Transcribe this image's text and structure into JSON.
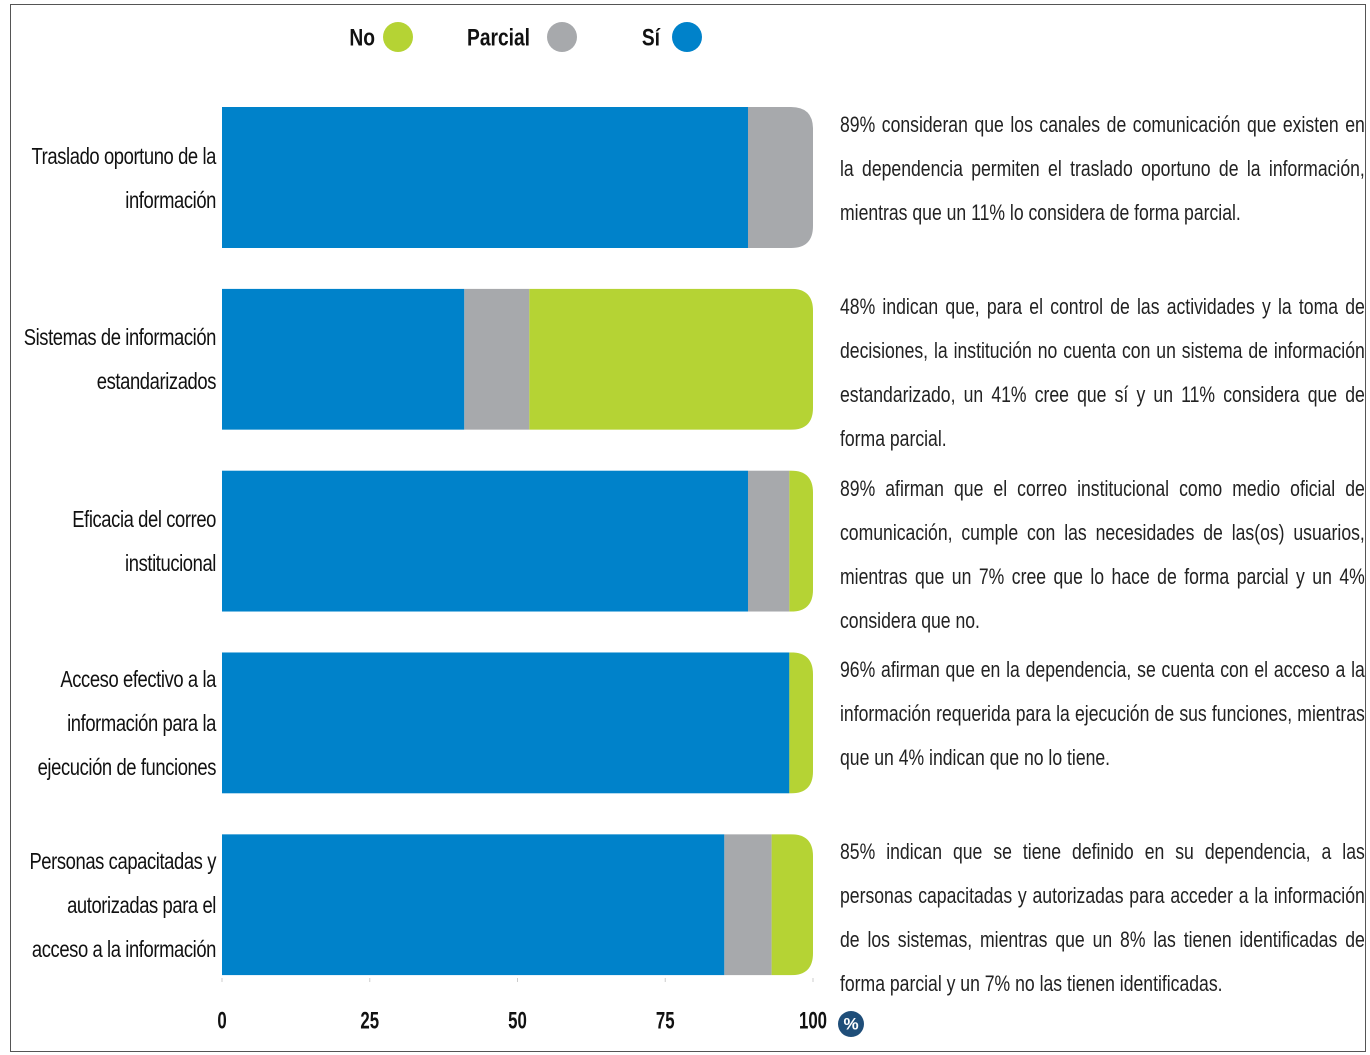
{
  "chart_data": {
    "type": "stacked_barh",
    "categories": [
      "Traslado oportuno de la información",
      "Sistemas de información estandarizados",
      "Eficacia del correo institucional",
      "Acceso efectivo a la información para la ejecución de funciones",
      "Personas capacitadas y autorizadas para el acceso a la información"
    ],
    "series": [
      {
        "name": "No",
        "color": "#b5d334",
        "values": [
          0,
          48,
          4,
          4,
          7
        ]
      },
      {
        "name": "Parcial",
        "color": "#a7a9ac",
        "values": [
          11,
          11,
          7,
          0,
          8
        ]
      },
      {
        "name": "Sí",
        "color": "#0082ca",
        "values": [
          89,
          41,
          89,
          96,
          85
        ]
      }
    ],
    "xlim": [
      0,
      100
    ],
    "xticks": [
      0,
      25,
      50,
      75,
      100
    ],
    "xlabel": "%",
    "annotations": [
      "89% consideran que los canales de comunicación que existen en la dependencia permiten el traslado oportuno de la información, mientras que un 11% lo considera de forma parcial.",
      "48% indican que, para el control de las actividades y la toma de decisiones, la institución no cuenta con un sistema de información estandarizado, un 41% cree que sí y un 11% considera que de forma parcial.",
      "89% afirman que el correo institucional como medio oficial de comunicación, cumple con las necesidades de las(os) usuarios, mientras que un 7% cree que lo hace de forma parcial y un 4% considera que no.",
      "96% afirman que en la dependencia, se cuenta con el acceso a la información requerida para la ejecución de sus funciones, mientras que un 4% indican que no lo tiene.",
      "85% indican que se tiene definido en su dependencia, a las personas capacitadas y autorizadas para acceder a la información de los sistemas, mientras que un 8% las tienen identificadas de forma parcial y un 7% no las tienen identificadas."
    ]
  }
}
